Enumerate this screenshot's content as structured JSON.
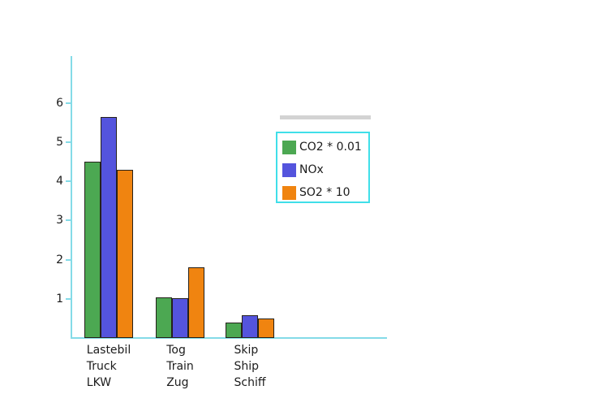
{
  "page": {
    "background": "#ffffff"
  },
  "chart_data": {
    "type": "bar",
    "title": "",
    "xlabel": "",
    "ylabel": "",
    "categories": [
      {
        "lines": [
          "Lastebil",
          "Truck",
          "LKW"
        ]
      },
      {
        "lines": [
          "Tog",
          "Train",
          "Zug"
        ]
      },
      {
        "lines": [
          "Skip",
          "Ship",
          "Schiff"
        ]
      }
    ],
    "series": [
      {
        "name": "CO2 * 0.01",
        "color": "#4ca852",
        "values": [
          4.5,
          1.04,
          0.4
        ]
      },
      {
        "name": "NOx",
        "color": "#5454dd",
        "values": [
          5.65,
          1.02,
          0.58
        ]
      },
      {
        "name": "SO2 * 10",
        "color": "#f08410",
        "values": [
          4.3,
          1.8,
          0.5
        ]
      }
    ],
    "y_axis": {
      "ticks": [
        1,
        2,
        3,
        4,
        5,
        6
      ],
      "min": 0,
      "max": 7.2
    },
    "grid": false,
    "legend": {
      "position": "upper-right-inside",
      "border_color": "#40dfe9",
      "background": "#ffffff"
    },
    "colors": {
      "axis": "#84dbe7",
      "bar_border": "#25211b",
      "text": "#1c1c1c",
      "artifact_strip": "#cbcbcb"
    }
  }
}
